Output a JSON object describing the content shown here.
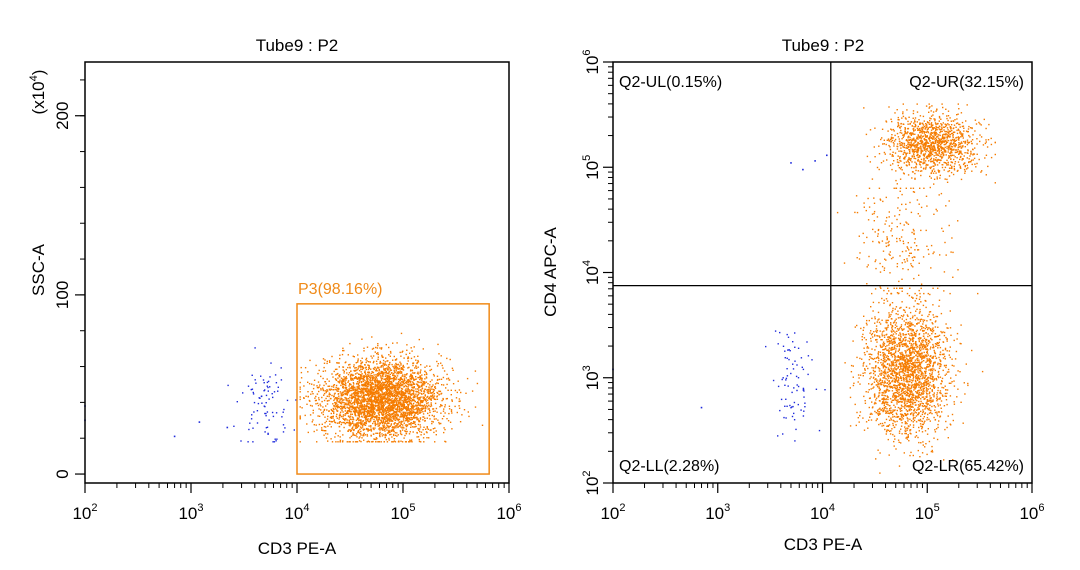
{
  "colors": {
    "gated": "#f57c00",
    "ungated": "#1f2bdc",
    "axis": "#000000",
    "gate": "#f08a18"
  },
  "chart_data": [
    {
      "type": "scatter",
      "title": "Tube9 : P2",
      "xlabel": "CD3 PE-A",
      "ylabel": "SSC-A",
      "x_scale": "log",
      "xlim": [
        100,
        1000000
      ],
      "xticks": [
        {
          "base": "10",
          "exp": "2",
          "value": 100
        },
        {
          "base": "10",
          "exp": "3",
          "value": 1000
        },
        {
          "base": "10",
          "exp": "4",
          "value": 10000
        },
        {
          "base": "10",
          "exp": "5",
          "value": 100000
        },
        {
          "base": "10",
          "exp": "6",
          "value": 1000000
        }
      ],
      "y_scale": "linear",
      "ylim": [
        -5,
        230
      ],
      "ylabel_multiplier": {
        "prefix": "(x10",
        "exp": "4",
        "suffix": ")"
      },
      "yticks": [
        {
          "label": "0",
          "value": 0
        },
        {
          "label": "100",
          "value": 100
        },
        {
          "label": "200",
          "value": 200
        }
      ],
      "gate": {
        "name": "P3(98.16%)",
        "x_range": [
          10000,
          650000
        ],
        "y_range": [
          0,
          95
        ]
      },
      "populations": [
        {
          "name": "gated",
          "color_key": "gated",
          "count": 3600,
          "x_log_center": 4.8,
          "x_log_sd": 0.28,
          "x_log_range": [
            4.03,
            5.75
          ],
          "y_center": 42,
          "y_sd": 11,
          "y_range": [
            18,
            80
          ]
        },
        {
          "name": "ungated",
          "color_key": "ungated",
          "count": 85,
          "x_log_center": 3.7,
          "x_log_sd": 0.13,
          "x_log_range": [
            3.35,
            3.99
          ],
          "y_center": 40,
          "y_sd": 11,
          "y_range": [
            18,
            72
          ]
        }
      ],
      "extra_points": [
        {
          "x": 100,
          "y": 38,
          "color_key": "ungated"
        },
        {
          "x": 100,
          "y": 30,
          "color_key": "ungated"
        },
        {
          "x": 700,
          "y": 21,
          "color_key": "ungated"
        },
        {
          "x": 1200,
          "y": 29,
          "color_key": "ungated"
        },
        {
          "x": 2200,
          "y": 26,
          "color_key": "ungated"
        }
      ]
    },
    {
      "type": "scatter",
      "title": "Tube9 : P2",
      "xlabel": "CD3 PE-A",
      "ylabel": "CD4 APC-A",
      "x_scale": "log",
      "xlim": [
        100,
        1000000
      ],
      "xticks": [
        {
          "base": "10",
          "exp": "2",
          "value": 100
        },
        {
          "base": "10",
          "exp": "3",
          "value": 1000
        },
        {
          "base": "10",
          "exp": "4",
          "value": 10000
        },
        {
          "base": "10",
          "exp": "5",
          "value": 100000
        },
        {
          "base": "10",
          "exp": "6",
          "value": 1000000
        }
      ],
      "y_scale": "log",
      "ylim": [
        100,
        1000000
      ],
      "yticks": [
        {
          "base": "10",
          "exp": "2",
          "value": 100
        },
        {
          "base": "10",
          "exp": "3",
          "value": 1000
        },
        {
          "base": "10",
          "exp": "4",
          "value": 10000
        },
        {
          "base": "10",
          "exp": "5",
          "value": 100000
        },
        {
          "base": "10",
          "exp": "6",
          "value": 1000000
        }
      ],
      "quadrant_split": {
        "x": 12000,
        "y": 7500
      },
      "quadrants": [
        {
          "label": "Q2-UL(0.15%)",
          "position": "top-left"
        },
        {
          "label": "Q2-UR(32.15%)",
          "position": "top-right"
        },
        {
          "label": "Q2-LL(2.28%)",
          "position": "bottom-left"
        },
        {
          "label": "Q2-LR(65.42%)",
          "position": "bottom-right"
        }
      ],
      "populations": [
        {
          "name": "CD3+CD4+",
          "color_key": "gated",
          "count": 1250,
          "x_log_center": 5.05,
          "x_log_sd": 0.22,
          "x_log_range": [
            4.1,
            5.65
          ],
          "y_log_center": 5.22,
          "y_log_sd": 0.14,
          "y_log_range": [
            4.75,
            5.6
          ]
        },
        {
          "name": "CD3+CD4-",
          "color_key": "gated",
          "count": 2300,
          "x_log_center": 4.8,
          "x_log_sd": 0.2,
          "x_log_range": [
            4.1,
            5.6
          ],
          "y_log_center": 3.05,
          "y_log_sd": 0.3,
          "y_log_range": [
            2.05,
            3.85
          ]
        },
        {
          "name": "transition",
          "color_key": "gated",
          "count": 220,
          "x_log_center": 4.75,
          "x_log_sd": 0.22,
          "x_log_range": [
            4.1,
            5.5
          ],
          "y_log_center": 4.3,
          "y_log_sd": 0.3,
          "y_log_range": [
            3.8,
            4.8
          ]
        },
        {
          "name": "CD3-CD4-",
          "color_key": "ungated",
          "count": 80,
          "x_log_center": 3.7,
          "x_log_sd": 0.12,
          "x_log_range": [
            3.4,
            4.06
          ],
          "y_log_center": 3.0,
          "y_log_sd": 0.28,
          "y_log_range": [
            2.4,
            3.75
          ]
        }
      ],
      "extra_points": [
        {
          "x": 5000,
          "y": 110000,
          "color_key": "ungated"
        },
        {
          "x": 6500,
          "y": 95000,
          "color_key": "ungated"
        },
        {
          "x": 8500,
          "y": 115000,
          "color_key": "ungated"
        },
        {
          "x": 11000,
          "y": 130000,
          "color_key": "ungated"
        },
        {
          "x": 700,
          "y": 520,
          "color_key": "ungated"
        },
        {
          "x": 100,
          "y": 1200,
          "color_key": "ungated"
        }
      ]
    }
  ]
}
